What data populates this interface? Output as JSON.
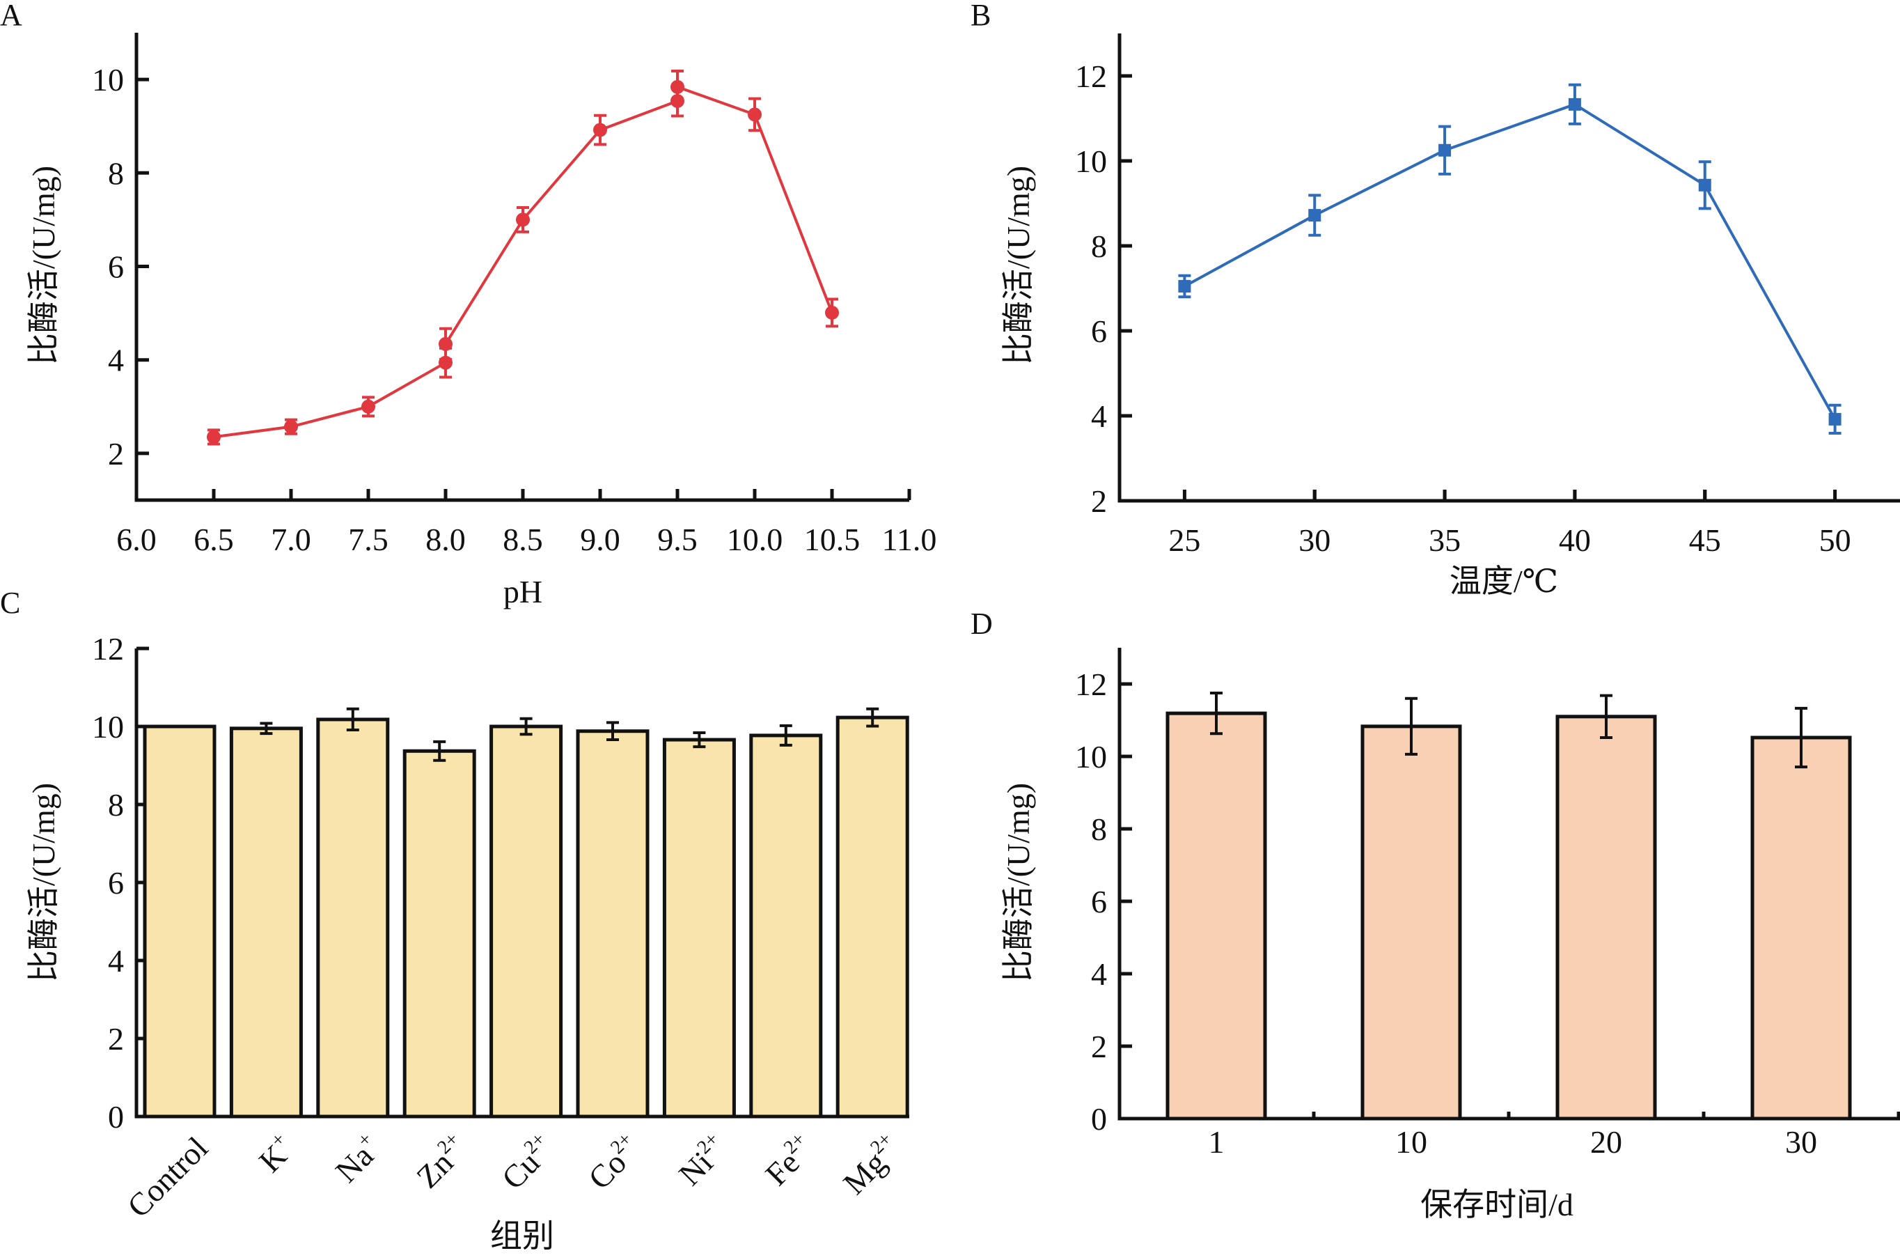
{
  "figure": {
    "panels": [
      "A",
      "B",
      "C",
      "D"
    ]
  },
  "chart_data": [
    {
      "panel": "A",
      "type": "line",
      "color": "#e0383e",
      "marker": "circle",
      "xlabel": "pH",
      "ylabel": "比酶活/(U/mg)",
      "xlim": [
        6.0,
        11.0
      ],
      "ylim": [
        1,
        11
      ],
      "xticks": [
        6.0,
        6.5,
        7.0,
        7.5,
        8.0,
        8.5,
        9.0,
        9.5,
        10.0,
        10.5,
        11.0
      ],
      "xtick_labels": [
        "6.0",
        "6.5",
        "7.0",
        "7.5",
        "8.0",
        "8.5",
        "9.0",
        "9.5",
        "10.0",
        "10.5",
        "11.0"
      ],
      "yticks": [
        2,
        4,
        6,
        8,
        10
      ],
      "ytick_labels": [
        "2",
        "4",
        "6",
        "8",
        "10"
      ],
      "points": [
        {
          "x": 6.5,
          "y": 2.35,
          "err": 0.15
        },
        {
          "x": 7.0,
          "y": 2.57,
          "err": 0.15
        },
        {
          "x": 7.5,
          "y": 3.0,
          "err": 0.2
        },
        {
          "x": 8.0,
          "y": 3.94,
          "err": 0.31
        },
        {
          "x": 8.0,
          "y": 4.34,
          "err": 0.33
        },
        {
          "x": 8.5,
          "y": 7.0,
          "err": 0.26
        },
        {
          "x": 9.0,
          "y": 8.92,
          "err": 0.31
        },
        {
          "x": 9.5,
          "y": 9.54,
          "err": 0.32
        },
        {
          "x": 9.5,
          "y": 9.84,
          "err": 0.34
        },
        {
          "x": 10.0,
          "y": 9.25,
          "err": 0.34
        },
        {
          "x": 10.5,
          "y": 5.01,
          "err": 0.29
        }
      ],
      "grid": false
    },
    {
      "panel": "B",
      "type": "line",
      "color": "#2e6bb8",
      "marker": "square",
      "xlabel": "温度/℃",
      "ylabel": "比酶活/(U/mg)",
      "xlim": [
        22.5,
        52.5
      ],
      "ylim": [
        2,
        13
      ],
      "xticks": [
        25,
        30,
        35,
        40,
        45,
        50
      ],
      "xtick_labels": [
        "25",
        "30",
        "35",
        "40",
        "45",
        "50"
      ],
      "yticks": [
        2,
        4,
        6,
        8,
        10,
        12
      ],
      "ytick_labels": [
        "2",
        "4",
        "6",
        "8",
        "10",
        "12"
      ],
      "points": [
        {
          "x": 25,
          "y": 7.05,
          "err": 0.25
        },
        {
          "x": 30,
          "y": 8.72,
          "err": 0.47
        },
        {
          "x": 35,
          "y": 10.25,
          "err": 0.56
        },
        {
          "x": 40,
          "y": 11.33,
          "err": 0.46
        },
        {
          "x": 45,
          "y": 9.43,
          "err": 0.55
        },
        {
          "x": 50,
          "y": 3.92,
          "err": 0.33
        }
      ],
      "grid": false
    },
    {
      "panel": "C",
      "type": "bar",
      "color": "#f9e4ab",
      "xlabel": "组别",
      "ylabel": "比酶活/(U/mg)",
      "ylim": [
        0,
        12
      ],
      "yticks": [
        0,
        2,
        4,
        6,
        8,
        10,
        12
      ],
      "ytick_labels": [
        "0",
        "2",
        "4",
        "6",
        "8",
        "10",
        "12"
      ],
      "categories": [
        {
          "base": "Control",
          "sup": ""
        },
        {
          "base": "K",
          "sup": "+"
        },
        {
          "base": "Na",
          "sup": "+"
        },
        {
          "base": "Zn",
          "sup": "2+"
        },
        {
          "base": "Cu",
          "sup": "2+"
        },
        {
          "base": "Co",
          "sup": "2+"
        },
        {
          "base": "Ni",
          "sup": "2+"
        },
        {
          "base": "Fe",
          "sup": "2+"
        },
        {
          "base": "Mg",
          "sup": "2+"
        }
      ],
      "values": [
        10.0,
        9.95,
        10.18,
        9.37,
        10.0,
        9.88,
        9.66,
        9.77,
        10.23
      ],
      "errors": [
        0,
        0.13,
        0.27,
        0.24,
        0.2,
        0.22,
        0.18,
        0.25,
        0.22
      ],
      "grid": false
    },
    {
      "panel": "D",
      "type": "bar",
      "color": "#f8d0b4",
      "xlabel": "保存时间/d",
      "ylabel": "比酶活/(U/mg)",
      "ylim": [
        0,
        13
      ],
      "yticks": [
        0,
        2,
        4,
        6,
        8,
        10,
        12
      ],
      "ytick_labels": [
        "0",
        "2",
        "4",
        "6",
        "8",
        "10",
        "12"
      ],
      "categories": [
        "1",
        "10",
        "20",
        "30"
      ],
      "values": [
        11.19,
        10.83,
        11.1,
        10.52
      ],
      "errors": [
        0.56,
        0.77,
        0.58,
        0.81
      ],
      "grid": false
    }
  ]
}
